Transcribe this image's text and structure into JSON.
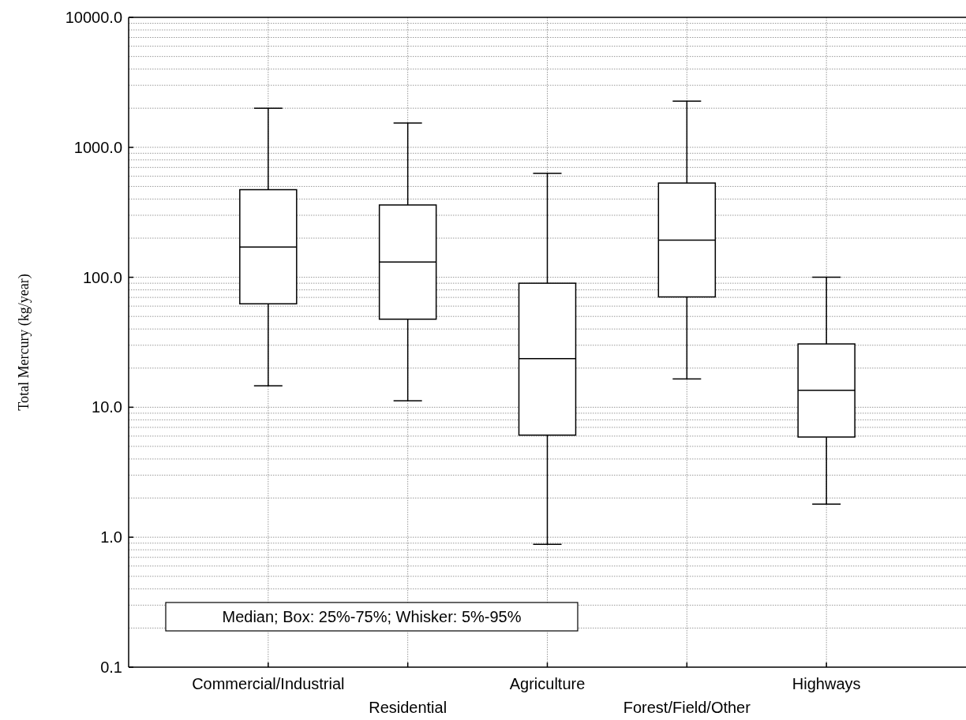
{
  "chart_data": {
    "type": "box",
    "ylabel": "Total Mercury (kg/year)",
    "categories": [
      "Commercial/Industrial",
      "Residential",
      "Agriculture",
      "Forest/Field/Other",
      "Highways"
    ],
    "boxes": [
      {
        "low": 14.6,
        "q1": 62.5,
        "median": 171,
        "q3": 472,
        "high": 2000
      },
      {
        "low": 11.2,
        "q1": 47.6,
        "median": 131,
        "q3": 360,
        "high": 1540
      },
      {
        "low": 0.88,
        "q1": 6.1,
        "median": 23.7,
        "q3": 90,
        "high": 631
      },
      {
        "low": 16.5,
        "q1": 70.6,
        "median": 193,
        "q3": 531,
        "high": 2270
      },
      {
        "low": 1.8,
        "q1": 5.9,
        "median": 13.5,
        "q3": 30.7,
        "high": 100
      }
    ],
    "log": "y",
    "ylim": [
      0.1,
      10000
    ],
    "yticks": [
      {
        "value": 0.1,
        "label": "0.1"
      },
      {
        "value": 1,
        "label": "1.0"
      },
      {
        "value": 10,
        "label": "10.0"
      },
      {
        "value": 100,
        "label": "100.0"
      },
      {
        "value": 1000,
        "label": "1000.0"
      },
      {
        "value": 10000,
        "label": "10000.0"
      }
    ],
    "grid": true,
    "annotations": [
      "Median; Box: 25%-75%; Whisker: 5%-95%"
    ]
  }
}
